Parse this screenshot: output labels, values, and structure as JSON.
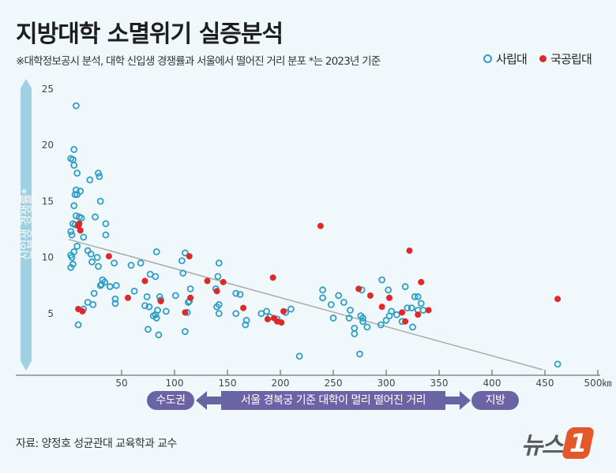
{
  "title": "지방대학 소멸위기 실증분석",
  "subtitle": "※대학정보공시 분석, 대학 신입생 경쟁률과 서울에서 떨어진 거리 분포   *는 2023년 기준",
  "legend": {
    "private": "사립대",
    "public": "국공립대"
  },
  "colors": {
    "private": "#2f9ec4",
    "public": "#dc2a2a",
    "trend": "#aaaaaa",
    "axis_bar": "#9fd0e3",
    "range_bar": "#6a63a4"
  },
  "bottom": {
    "left": "수도권",
    "middle": "서울 경복궁 기준 대학이 멀리 떨어진 거리",
    "right": "지방"
  },
  "source": "자료: 양정호 성균관대 교육학과 교수",
  "logo": {
    "text": "뉴스",
    "mark": "1"
  },
  "chart_data": {
    "type": "scatter",
    "title": "지방대학 소멸위기 실증분석",
    "xlabel": "서울 경복궁 기준 대학이 멀리 떨어진 거리",
    "ylabel": "신입생 경쟁률*",
    "xlim": [
      0,
      500
    ],
    "ylim": [
      0,
      25
    ],
    "xticks": [
      "50",
      "100",
      "150",
      "200",
      "250",
      "300",
      "350",
      "400",
      "450",
      "500㎞"
    ],
    "xtick_values": [
      50,
      100,
      150,
      200,
      250,
      300,
      350,
      400,
      450,
      500
    ],
    "yticks": [
      5,
      10,
      15,
      20,
      25
    ],
    "grid": false,
    "legend_position": "top-right",
    "trendline": [
      [
        0,
        11.6
      ],
      [
        448,
        0
      ]
    ],
    "series": [
      {
        "name": "사립대",
        "points": [
          [
            7,
            23.5
          ],
          [
            5,
            19.6
          ],
          [
            2,
            18.8
          ],
          [
            4,
            18.7
          ],
          [
            5,
            18.2
          ],
          [
            8,
            17.5
          ],
          [
            28,
            17.5
          ],
          [
            29,
            17.2
          ],
          [
            20,
            16.9
          ],
          [
            7,
            16
          ],
          [
            11,
            15.9
          ],
          [
            6,
            15.6
          ],
          [
            8,
            15.6
          ],
          [
            30,
            15
          ],
          [
            5,
            14.6
          ],
          [
            35,
            13
          ],
          [
            7,
            13.7
          ],
          [
            10,
            13.6
          ],
          [
            12,
            13.5
          ],
          [
            25,
            13.6
          ],
          [
            4,
            13
          ],
          [
            6,
            12.9
          ],
          [
            2,
            12.3
          ],
          [
            3,
            12
          ],
          [
            35,
            12
          ],
          [
            14,
            11.8
          ],
          [
            8,
            11
          ],
          [
            5,
            10.5
          ],
          [
            2,
            10.2
          ],
          [
            3,
            10
          ],
          [
            18,
            10.6
          ],
          [
            21,
            10.3
          ],
          [
            27,
            10
          ],
          [
            4,
            9.4
          ],
          [
            2,
            9.1
          ],
          [
            22,
            9.6
          ],
          [
            28,
            9.2
          ],
          [
            32,
            8
          ],
          [
            34,
            7.8
          ],
          [
            30,
            7.5
          ],
          [
            39,
            7.4
          ],
          [
            31,
            7.6
          ],
          [
            43,
            9.5
          ],
          [
            45,
            7.5
          ],
          [
            44,
            6.3
          ],
          [
            44,
            5.9
          ],
          [
            18,
            6
          ],
          [
            23,
            5.8
          ],
          [
            14,
            5.4
          ],
          [
            9,
            4
          ],
          [
            24,
            6.8
          ],
          [
            59,
            9.3
          ],
          [
            68,
            9.5
          ],
          [
            62,
            7
          ],
          [
            77,
            8.5
          ],
          [
            82,
            8.3
          ],
          [
            83,
            10.5
          ],
          [
            74,
            6.5
          ],
          [
            87,
            6.2
          ],
          [
            76,
            5.6
          ],
          [
            72,
            5.7
          ],
          [
            84,
            5.3
          ],
          [
            82,
            4.9
          ],
          [
            80,
            4.8
          ],
          [
            83,
            4.6
          ],
          [
            92,
            5.2
          ],
          [
            86,
            6.5
          ],
          [
            75,
            3.6
          ],
          [
            85,
            3.1
          ],
          [
            110,
            10.4
          ],
          [
            107,
            9.7
          ],
          [
            115,
            7.2
          ],
          [
            108,
            8.6
          ],
          [
            101,
            6.6
          ],
          [
            114,
            6.1
          ],
          [
            113,
            6
          ],
          [
            112,
            5.1
          ],
          [
            110,
            3.4
          ],
          [
            142,
            9.5
          ],
          [
            141,
            8.3
          ],
          [
            139,
            7.2
          ],
          [
            142,
            5.8
          ],
          [
            140,
            5.6
          ],
          [
            142,
            5
          ],
          [
            158,
            6.8
          ],
          [
            162,
            6.7
          ],
          [
            158,
            5
          ],
          [
            167,
            4
          ],
          [
            168,
            4.4
          ],
          [
            182,
            5
          ],
          [
            187,
            5.2
          ],
          [
            190,
            4.7
          ],
          [
            197,
            4.5
          ],
          [
            205,
            5.1
          ],
          [
            210,
            5.4
          ],
          [
            218,
            1.2
          ],
          [
            240,
            7.1
          ],
          [
            240,
            6.4
          ],
          [
            248,
            5.8
          ],
          [
            255,
            6.6
          ],
          [
            260,
            6
          ],
          [
            266,
            5.3
          ],
          [
            250,
            4.6
          ],
          [
            265,
            4.6
          ],
          [
            270,
            3.2
          ],
          [
            270,
            3.7
          ],
          [
            276,
            4.8
          ],
          [
            278,
            4.3
          ],
          [
            278,
            4.6
          ],
          [
            282,
            3.8
          ],
          [
            275,
            1.4
          ],
          [
            277,
            7.1
          ],
          [
            296,
            8
          ],
          [
            302,
            7.1
          ],
          [
            305,
            5.2
          ],
          [
            303,
            4.8
          ],
          [
            300,
            4.4
          ],
          [
            295,
            4
          ],
          [
            310,
            4.9
          ],
          [
            315,
            4.3
          ],
          [
            318,
            7.4
          ],
          [
            320,
            5.5
          ],
          [
            324,
            5.5
          ],
          [
            327,
            6.5
          ],
          [
            330,
            6.5
          ],
          [
            333,
            5.9
          ],
          [
            330,
            5.3
          ],
          [
            325,
            3.8
          ],
          [
            335,
            5.3
          ],
          [
            462,
            0.5
          ]
        ]
      },
      {
        "name": "국공립대",
        "points": [
          [
            10,
            13
          ],
          [
            11,
            12.4
          ],
          [
            9,
            12.8
          ],
          [
            38,
            10.1
          ],
          [
            9,
            5.4
          ],
          [
            13,
            5.2
          ],
          [
            56,
            6.4
          ],
          [
            72,
            7.9
          ],
          [
            87,
            6.1
          ],
          [
            115,
            6.4
          ],
          [
            114,
            10.1
          ],
          [
            110,
            5.1
          ],
          [
            131,
            7.9
          ],
          [
            146,
            7.8
          ],
          [
            140,
            7
          ],
          [
            165,
            5.5
          ],
          [
            193,
            8.2
          ],
          [
            188,
            4.5
          ],
          [
            194,
            4.6
          ],
          [
            197,
            4.3
          ],
          [
            201,
            4.2
          ],
          [
            203,
            5.2
          ],
          [
            238,
            12.8
          ],
          [
            274,
            7.2
          ],
          [
            285,
            6.6
          ],
          [
            296,
            5.6
          ],
          [
            303,
            6.4
          ],
          [
            318,
            4.3
          ],
          [
            322,
            10.6
          ],
          [
            330,
            4.9
          ],
          [
            333,
            7.8
          ],
          [
            340,
            5.3
          ],
          [
            462,
            6.3
          ],
          [
            315,
            5.1
          ]
        ]
      }
    ]
  }
}
